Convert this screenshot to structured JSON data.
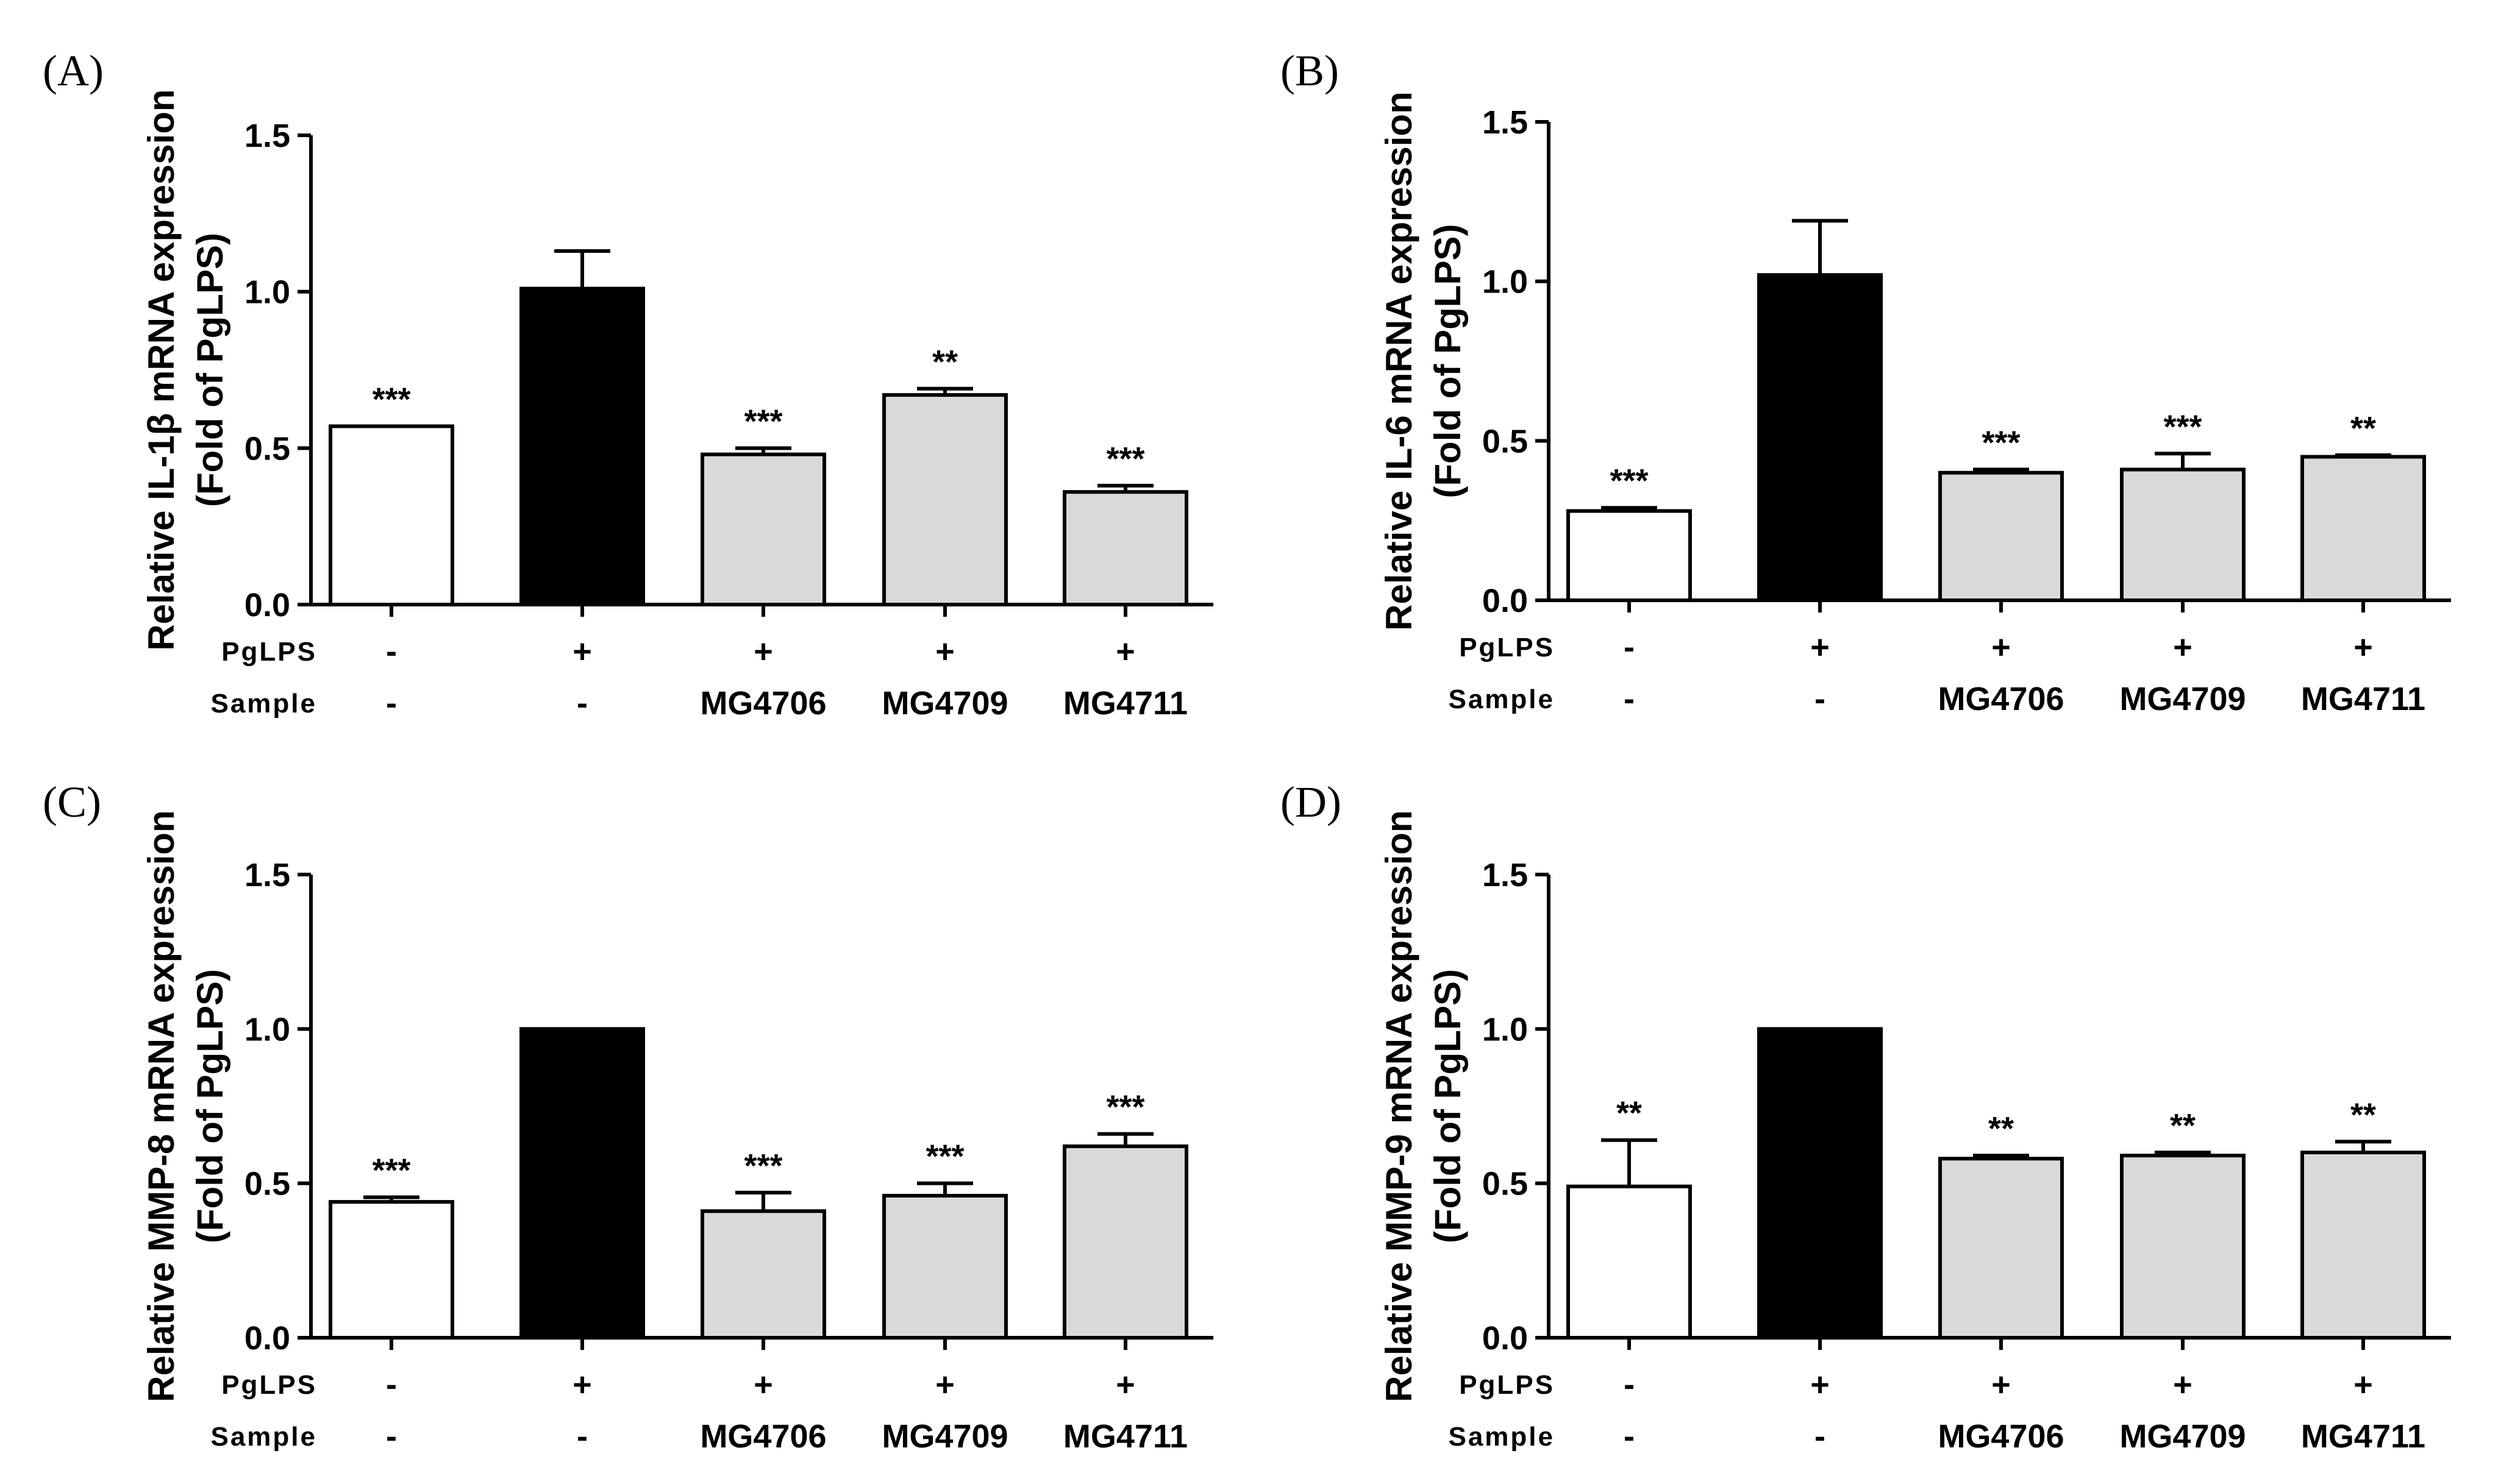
{
  "colors": {
    "control": "#ffffff",
    "pglps": "#000000",
    "sample": "#d9d9d9",
    "stroke": "#000000"
  },
  "chart_data": [
    {
      "type": "bar",
      "panel_label": "(A)",
      "ylabel_line1": "Relative IL-1β mRNA expression",
      "ylabel_line2": "(Fold of PgLPS)",
      "ylim": [
        0,
        1.5
      ],
      "yticks": [
        "0.0",
        "0.5",
        "1.0",
        "1.5"
      ],
      "row_labels": [
        "PgLPS",
        "Sample"
      ],
      "pglps": [
        "-",
        "+",
        "+",
        "+",
        "+"
      ],
      "sample": [
        "-",
        "-",
        "MG4706",
        "MG4709",
        "MG4711"
      ],
      "values": [
        0.57,
        1.01,
        0.48,
        0.67,
        0.36
      ],
      "errors": [
        0.0,
        0.12,
        0.02,
        0.02,
        0.02
      ],
      "significance": [
        "***",
        "",
        "***",
        "**",
        "***"
      ]
    },
    {
      "type": "bar",
      "panel_label": "(B)",
      "ylabel_line1": "Relative IL-6 mRNA expression",
      "ylabel_line2": "(Fold of PgLPS)",
      "ylim": [
        0,
        1.5
      ],
      "yticks": [
        "0.0",
        "0.5",
        "1.0",
        "1.5"
      ],
      "row_labels": [
        "PgLPS",
        "Sample"
      ],
      "pglps": [
        "-",
        "+",
        "+",
        "+",
        "+"
      ],
      "sample": [
        "-",
        "-",
        "MG4706",
        "MG4709",
        "MG4711"
      ],
      "values": [
        0.28,
        1.02,
        0.4,
        0.41,
        0.45
      ],
      "errors": [
        0.01,
        0.17,
        0.01,
        0.05,
        0.005
      ],
      "significance": [
        "***",
        "",
        "***",
        "***",
        "**"
      ]
    },
    {
      "type": "bar",
      "panel_label": "(C)",
      "ylabel_line1": "Relative MMP-8 mRNA expression",
      "ylabel_line2": "(Fold of PgLPS)",
      "ylim": [
        0,
        1.5
      ],
      "yticks": [
        "0.0",
        "0.5",
        "1.0",
        "1.5"
      ],
      "row_labels": [
        "PgLPS",
        "Sample"
      ],
      "pglps": [
        "-",
        "+",
        "+",
        "+",
        "+"
      ],
      "sample": [
        "-",
        "-",
        "MG4706",
        "MG4709",
        "MG4711"
      ],
      "values": [
        0.44,
        1.0,
        0.41,
        0.46,
        0.62
      ],
      "errors": [
        0.015,
        0.0,
        0.06,
        0.04,
        0.04
      ],
      "significance": [
        "***",
        "",
        "***",
        "***",
        "***"
      ]
    },
    {
      "type": "bar",
      "panel_label": "(D)",
      "ylabel_line1": "Relative MMP-9 mRNA expression",
      "ylabel_line2": "(Fold of PgLPS)",
      "ylim": [
        0,
        1.5
      ],
      "yticks": [
        "0.0",
        "0.5",
        "1.0",
        "1.5"
      ],
      "row_labels": [
        "PgLPS",
        "Sample"
      ],
      "pglps": [
        "-",
        "+",
        "+",
        "+",
        "+"
      ],
      "sample": [
        "-",
        "-",
        "MG4706",
        "MG4709",
        "MG4711"
      ],
      "values": [
        0.49,
        1.0,
        0.58,
        0.59,
        0.6
      ],
      "errors": [
        0.15,
        0.0,
        0.01,
        0.01,
        0.035
      ],
      "significance": [
        "**",
        "",
        "**",
        "**",
        "**"
      ]
    }
  ]
}
